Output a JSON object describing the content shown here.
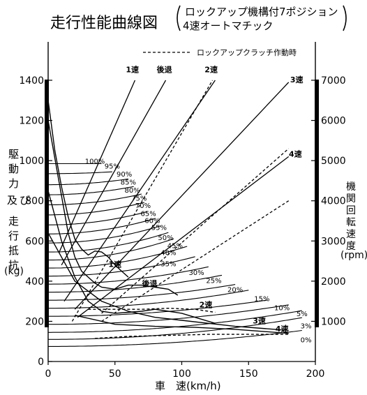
{
  "chart_data": {
    "type": "line",
    "title": "走行性能曲線図",
    "subtitle_line1": "ロックアップ機構付7ポジション",
    "subtitle_line2": "4速オートマチック",
    "legend_dashed": "ロックアップクラッチ作動時",
    "xlabel": "車　速(km/h)",
    "ylabel_left": [
      "駆",
      "動",
      "力",
      "及",
      "び",
      "走",
      "行",
      "抵",
      "抗"
    ],
    "ylabel_left_unit": "(kg)",
    "ylabel_right": [
      "機",
      "関",
      "回",
      "転",
      "速",
      "度"
    ],
    "ylabel_right_unit": "(rpm)",
    "xlim": [
      0,
      200
    ],
    "ylim": [
      0,
      1400
    ],
    "x_ticks": [
      "0",
      "50",
      "100",
      "150",
      "200"
    ],
    "y_ticks_left": [
      "0",
      "200",
      "400",
      "600",
      "800",
      "1000",
      "1200",
      "1400"
    ],
    "y_ticks_right": [
      "1000",
      "2000",
      "3000",
      "4000",
      "5000",
      "6000",
      "7000"
    ],
    "rpm_lines": [
      {
        "name": "1速",
        "x": [
          8,
          65
        ],
        "rpm": [
          2700,
          7000
        ],
        "dashed": false
      },
      {
        "name": "後退",
        "x": [
          10,
          88
        ],
        "rpm": [
          2400,
          7000
        ],
        "dashed": false
      },
      {
        "name": "2速",
        "x": [
          12,
          125
        ],
        "rpm": [
          1500,
          7000
        ],
        "dashed": false
      },
      {
        "name": "2速",
        "x": [
          18,
          123
        ],
        "rpm": [
          1000,
          7000
        ],
        "dashed": true
      },
      {
        "name": "3速",
        "x": [
          20,
          180
        ],
        "rpm": [
          1300,
          6950
        ],
        "dashed": false
      },
      {
        "name": "3速",
        "x": [
          40,
          180
        ],
        "rpm": [
          1200,
          5300
        ],
        "dashed": true
      },
      {
        "name": "4速",
        "x": [
          22,
          180
        ],
        "rpm": [
          1100,
          5100
        ],
        "dashed": false
      },
      {
        "name": "4速",
        "x": [
          40,
          180
        ],
        "rpm": [
          1000,
          4000
        ],
        "dashed": true
      }
    ],
    "rpm_line_labels": [
      {
        "text": "1速",
        "x": 63,
        "rpm": 7200
      },
      {
        "text": "後退",
        "x": 87,
        "rpm": 7200
      },
      {
        "text": "2速",
        "x": 122,
        "rpm": 7200
      },
      {
        "text": "3速",
        "x": 186,
        "rpm": 6950
      },
      {
        "text": "4速",
        "x": 185,
        "rpm": 5100
      }
    ],
    "resistance_curves": [
      {
        "name": "100%",
        "v0": 985,
        "k": 0.0,
        "x_end": 40
      },
      {
        "name": "95%",
        "v0": 935,
        "k": 0.004,
        "x_end": 48
      },
      {
        "name": "90%",
        "v0": 880,
        "k": 0.008,
        "x_end": 60
      },
      {
        "name": "85%",
        "v0": 830,
        "k": 0.01,
        "x_end": 65
      },
      {
        "name": "80%",
        "v0": 780,
        "k": 0.011,
        "x_end": 70
      },
      {
        "name": "75%",
        "v0": 730,
        "k": 0.012,
        "x_end": 72
      },
      {
        "name": "70%",
        "v0": 680,
        "k": 0.012,
        "x_end": 75
      },
      {
        "name": "65%",
        "v0": 635,
        "k": 0.012,
        "x_end": 80
      },
      {
        "name": "60%",
        "v0": 590,
        "k": 0.012,
        "x_end": 85
      },
      {
        "name": "55%",
        "v0": 545,
        "k": 0.012,
        "x_end": 90
      },
      {
        "name": "50%",
        "v0": 505,
        "k": 0.012,
        "x_end": 95
      },
      {
        "name": "45%",
        "v0": 465,
        "k": 0.01,
        "x_end": 105
      },
      {
        "name": "40%",
        "v0": 425,
        "k": 0.008,
        "x_end": 110
      },
      {
        "name": "35%",
        "v0": 385,
        "k": 0.006,
        "x_end": 120
      },
      {
        "name": "30%",
        "v0": 345,
        "k": 0.005,
        "x_end": 130
      },
      {
        "name": "25%",
        "v0": 305,
        "k": 0.004,
        "x_end": 140
      },
      {
        "name": "20%",
        "v0": 265,
        "k": 0.004,
        "x_end": 150
      },
      {
        "name": "15%",
        "v0": 225,
        "k": 0.003,
        "x_end": 165
      },
      {
        "name": "10%",
        "v0": 185,
        "k": 0.003,
        "x_end": 180
      },
      {
        "name": "5%",
        "v0": 145,
        "k": 0.003,
        "x_end": 190
      },
      {
        "name": "3%",
        "v0": 110,
        "k": 0.003,
        "x_end": 190
      },
      {
        "name": "0%",
        "v0": 75,
        "k": 0.0022,
        "x_end": 190
      }
    ],
    "resistance_labels": [
      {
        "text": "100%",
        "x": 35,
        "y": 985
      },
      {
        "text": "95%",
        "x": 48,
        "y": 960
      },
      {
        "text": "90%",
        "x": 57,
        "y": 920
      },
      {
        "text": "85%",
        "x": 60,
        "y": 880
      },
      {
        "text": "80%",
        "x": 63,
        "y": 840
      },
      {
        "text": "75%",
        "x": 68,
        "y": 800
      },
      {
        "text": "70%",
        "x": 71,
        "y": 765
      },
      {
        "text": "65%",
        "x": 75,
        "y": 725
      },
      {
        "text": "60%",
        "x": 78,
        "y": 690
      },
      {
        "text": "55%",
        "x": 83,
        "y": 655
      },
      {
        "text": "50%",
        "x": 88,
        "y": 605
      },
      {
        "text": "45%",
        "x": 95,
        "y": 565
      },
      {
        "text": "40%",
        "x": 90,
        "y": 530
      },
      {
        "text": "35%",
        "x": 90,
        "y": 475
      },
      {
        "text": "30%",
        "x": 111,
        "y": 430
      },
      {
        "text": "25%",
        "x": 124,
        "y": 390
      },
      {
        "text": "20%",
        "x": 140,
        "y": 345
      },
      {
        "text": "15%",
        "x": 160,
        "y": 300
      },
      {
        "text": "10%",
        "x": 175,
        "y": 255
      },
      {
        "text": "5%",
        "x": 190,
        "y": 225
      },
      {
        "text": "3%",
        "x": 193,
        "y": 165
      },
      {
        "text": "0%",
        "x": 193,
        "y": 95
      }
    ],
    "traction_curves": [
      {
        "name": "1速",
        "dashed": false,
        "pts": [
          [
            0,
            1300
          ],
          [
            5,
            1050
          ],
          [
            10,
            870
          ],
          [
            15,
            720
          ],
          [
            20,
            610
          ],
          [
            25,
            560
          ],
          [
            30,
            530
          ],
          [
            35,
            550
          ],
          [
            40,
            545
          ],
          [
            45,
            520
          ],
          [
            50,
            480
          ],
          [
            55,
            450
          ],
          [
            60,
            420
          ]
        ]
      },
      {
        "name": "後退",
        "dashed": false,
        "pts": [
          [
            0,
            1200
          ],
          [
            8,
            900
          ],
          [
            15,
            640
          ],
          [
            20,
            520
          ],
          [
            25,
            450
          ],
          [
            30,
            420
          ],
          [
            35,
            390
          ],
          [
            40,
            370
          ],
          [
            50,
            360
          ],
          [
            60,
            380
          ],
          [
            70,
            380
          ],
          [
            80,
            370
          ],
          [
            90,
            360
          ],
          [
            97,
            330
          ]
        ]
      },
      {
        "name": "2速",
        "dashed": false,
        "pts": [
          [
            0,
            850
          ],
          [
            10,
            600
          ],
          [
            20,
            420
          ],
          [
            30,
            300
          ],
          [
            40,
            250
          ],
          [
            50,
            240
          ],
          [
            60,
            245
          ],
          [
            70,
            250
          ],
          [
            80,
            260
          ],
          [
            90,
            250
          ],
          [
            100,
            240
          ],
          [
            110,
            220
          ],
          [
            120,
            200
          ],
          [
            125,
            190
          ]
        ]
      },
      {
        "name": "2速",
        "dashed": true,
        "pts": [
          [
            30,
            260
          ],
          [
            50,
            260
          ],
          [
            70,
            260
          ],
          [
            90,
            265
          ],
          [
            110,
            260
          ],
          [
            125,
            245
          ]
        ]
      },
      {
        "name": "3速",
        "dashed": false,
        "pts": [
          [
            0,
            640
          ],
          [
            20,
            400
          ],
          [
            40,
            300
          ],
          [
            60,
            250
          ],
          [
            80,
            220
          ],
          [
            100,
            205
          ],
          [
            120,
            190
          ],
          [
            140,
            175
          ],
          [
            160,
            165
          ],
          [
            180,
            155
          ]
        ]
      },
      {
        "name": "4速",
        "dashed": false,
        "pts": [
          [
            20,
            230
          ],
          [
            50,
            185
          ],
          [
            80,
            175
          ],
          [
            110,
            170
          ],
          [
            140,
            160
          ],
          [
            160,
            150
          ],
          [
            180,
            140
          ]
        ]
      },
      {
        "name": "4速",
        "dashed": true,
        "pts": [
          [
            35,
            115
          ],
          [
            60,
            125
          ],
          [
            90,
            130
          ],
          [
            120,
            135
          ],
          [
            150,
            135
          ],
          [
            180,
            135
          ]
        ]
      }
    ],
    "traction_labels": [
      {
        "text": "1速",
        "x": 50,
        "y": 470
      },
      {
        "text": "後退",
        "x": 76,
        "y": 375
      },
      {
        "text": "2速",
        "x": 118,
        "y": 270
      },
      {
        "text": "3速",
        "x": 158,
        "y": 190
      },
      {
        "text": "4速",
        "x": 175,
        "y": 150
      }
    ]
  }
}
